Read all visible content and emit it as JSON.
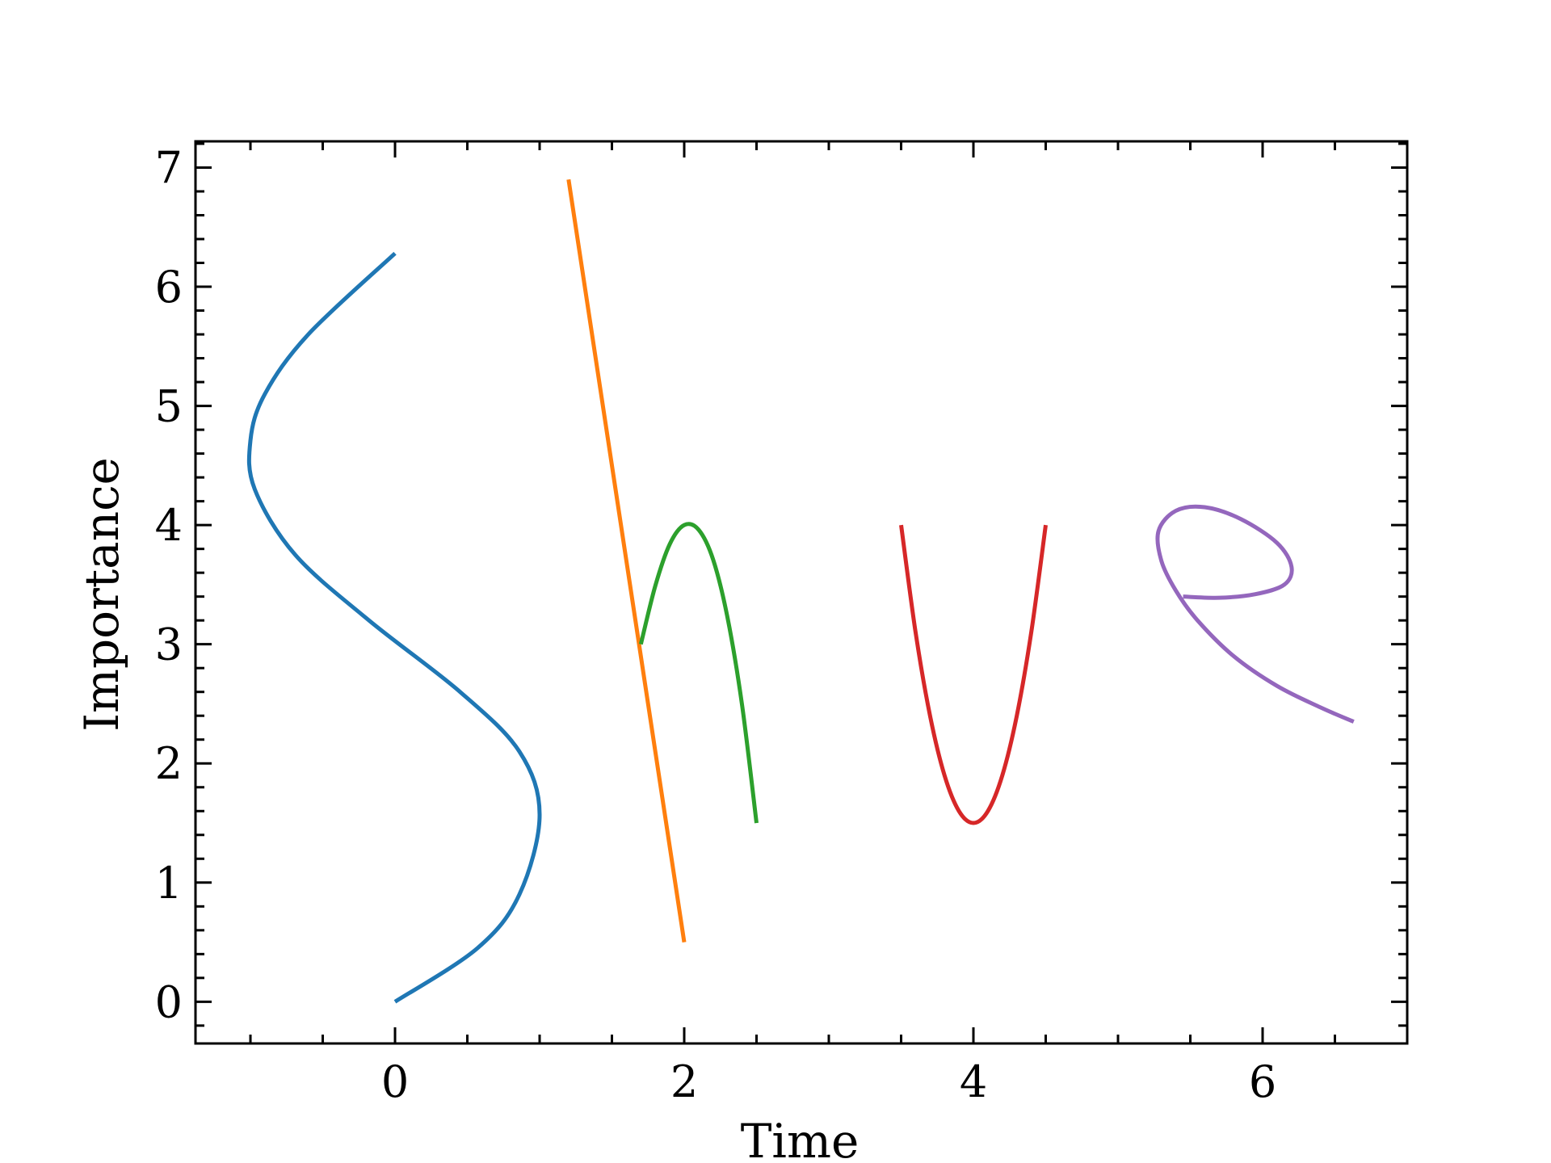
{
  "chart_data": {
    "type": "line",
    "title": "",
    "xlabel": "Time",
    "ylabel": "Importance",
    "xlim": [
      -1.38,
      7.0
    ],
    "ylim": [
      -0.35,
      7.22
    ],
    "x_ticks": [
      0,
      2,
      4,
      6
    ],
    "x_tick_labels": [
      "0",
      "2",
      "4",
      "6"
    ],
    "y_ticks": [
      0,
      1,
      2,
      3,
      4,
      5,
      6,
      7
    ],
    "y_tick_labels": [
      "0",
      "1",
      "2",
      "3",
      "4",
      "5",
      "6",
      "7"
    ],
    "x_minor_step": 0.5,
    "y_minor_step": 0.2,
    "ticks_direction": "in",
    "ticks_on_all_sides": true,
    "grid": false,
    "legend": "none",
    "series": [
      {
        "color": "#1f77b4",
        "points": [
          [
            0.0,
            0.0
          ],
          [
            0.57,
            0.45
          ],
          [
            0.86,
            0.9
          ],
          [
            1.0,
            1.57
          ],
          [
            0.86,
            2.1
          ],
          [
            0.45,
            2.6
          ],
          [
            -0.18,
            3.2
          ],
          [
            -0.69,
            3.75
          ],
          [
            -0.97,
            4.3
          ],
          [
            -1.0,
            4.71
          ],
          [
            -0.9,
            5.1
          ],
          [
            -0.6,
            5.6
          ],
          [
            0.0,
            6.28
          ]
        ]
      },
      {
        "color": "#ff7f0e",
        "points": [
          [
            1.2,
            6.9
          ],
          [
            2.0,
            0.5
          ]
        ]
      },
      {
        "color": "#2ca02c",
        "points": [
          [
            1.7,
            3.0
          ],
          [
            1.8,
            3.49
          ],
          [
            1.9,
            3.84
          ],
          [
            2.0,
            4.0
          ],
          [
            2.1,
            3.96
          ],
          [
            2.2,
            3.71
          ],
          [
            2.3,
            3.22
          ],
          [
            2.4,
            2.49
          ],
          [
            2.5,
            1.5
          ]
        ]
      },
      {
        "color": "#d62728",
        "points": [
          [
            3.5,
            4.0
          ],
          [
            3.6,
            3.1
          ],
          [
            3.7,
            2.4
          ],
          [
            3.8,
            1.9
          ],
          [
            3.9,
            1.6
          ],
          [
            4.0,
            1.5
          ],
          [
            4.1,
            1.6
          ],
          [
            4.2,
            1.9
          ],
          [
            4.3,
            2.4
          ],
          [
            4.4,
            3.1
          ],
          [
            4.5,
            4.0
          ]
        ]
      },
      {
        "color": "#9467bd",
        "points": [
          [
            5.45,
            3.4
          ],
          [
            5.7,
            3.39
          ],
          [
            5.95,
            3.42
          ],
          [
            6.15,
            3.5
          ],
          [
            6.2,
            3.65
          ],
          [
            6.1,
            3.85
          ],
          [
            5.85,
            4.05
          ],
          [
            5.6,
            4.15
          ],
          [
            5.4,
            4.12
          ],
          [
            5.28,
            3.95
          ],
          [
            5.3,
            3.7
          ],
          [
            5.4,
            3.45
          ],
          [
            5.55,
            3.2
          ],
          [
            5.8,
            2.9
          ],
          [
            6.1,
            2.65
          ],
          [
            6.4,
            2.47
          ],
          [
            6.63,
            2.35
          ]
        ]
      }
    ]
  }
}
